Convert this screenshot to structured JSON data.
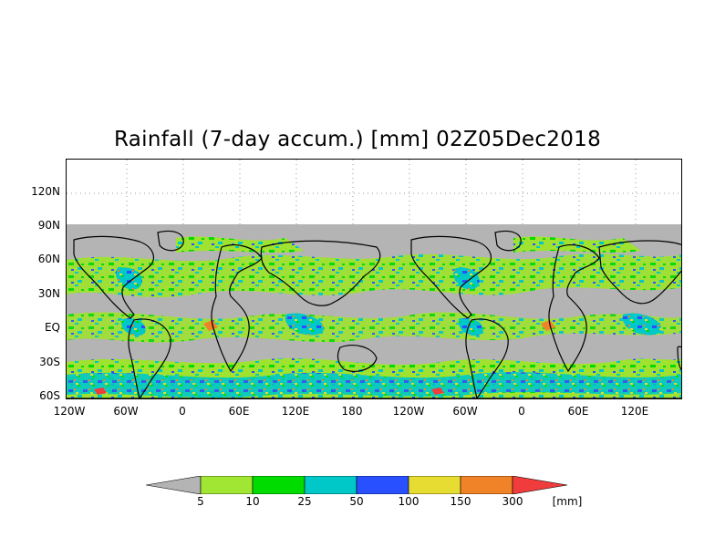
{
  "title": "Rainfall (7-day accum.) [mm] 02Z05Dec2018",
  "y_ticks": [
    "120N",
    "90N",
    "60N",
    "30N",
    "EQ",
    "30S",
    "60S"
  ],
  "x_ticks": [
    "120W",
    "60W",
    "0",
    "60E",
    "120E",
    "180",
    "120W",
    "60W",
    "0",
    "60E",
    "120E"
  ],
  "colorbar": {
    "labels": [
      "5",
      "10",
      "25",
      "50",
      "100",
      "150",
      "300"
    ],
    "unit": "[mm]",
    "colors": [
      "#b4b4b4",
      "#a0e632",
      "#00dc00",
      "#00c8c8",
      "#2850ff",
      "#e6dc32",
      "#f08228",
      "#f03c3c"
    ]
  },
  "colors": {
    "no_data": "#b4b4b4",
    "dry": "#b4b4b4",
    "coastline": "#000000"
  }
}
